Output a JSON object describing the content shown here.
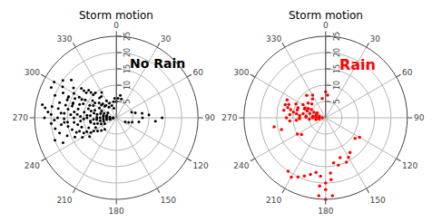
{
  "chart_data": [
    {
      "type": "polar",
      "title": "Storm motion",
      "annotations": [
        "No Rain"
      ],
      "color": "black",
      "x": [
        285,
        280,
        275,
        270,
        265,
        260,
        255,
        290,
        295,
        300,
        285,
        280,
        275,
        270,
        265,
        260,
        255,
        250,
        245,
        290,
        295,
        300,
        305,
        310,
        315,
        285,
        280,
        275,
        270,
        265,
        260,
        255,
        285,
        280,
        275,
        270,
        265,
        260,
        255,
        250,
        245,
        290,
        295,
        300,
        285,
        280,
        275,
        270,
        265,
        260,
        255,
        290,
        295,
        300,
        320,
        325,
        330,
        335,
        340,
        345,
        270,
        275,
        280,
        265,
        260,
        255,
        250,
        245,
        240,
        235,
        290,
        295,
        300,
        305,
        310,
        315,
        270,
        275,
        265,
        260,
        350,
        355,
        0,
        5,
        10,
        15,
        90,
        90,
        85,
        95,
        100,
        105,
        110,
        115,
        80,
        75,
        70,
        330,
        325,
        320,
        315,
        310,
        240,
        235,
        230,
        225,
        300,
        305,
        310,
        250,
        245,
        275,
        272,
        278,
        268,
        263,
        282,
        288,
        293,
        298,
        271,
        276,
        266,
        284,
        279,
        274,
        269,
        264,
        289,
        294,
        299,
        273,
        278,
        268,
        263,
        283,
        288,
        293,
        298,
        320,
        315,
        310,
        250,
        245,
        240,
        306,
        311,
        316,
        253,
        248,
        243
      ],
      "values": [
        8,
        10,
        12,
        9,
        11,
        8,
        7,
        7,
        9,
        6,
        14,
        15,
        16,
        13,
        15,
        12,
        11,
        9,
        7,
        12,
        14,
        11,
        8,
        6,
        5,
        5,
        6,
        8,
        5,
        6,
        5,
        4,
        18,
        20,
        17,
        18,
        16,
        15,
        14,
        12,
        10,
        16,
        18,
        15,
        3,
        4,
        3,
        3,
        4,
        3,
        2,
        4,
        5,
        3,
        5,
        4,
        6,
        5,
        4,
        3,
        22,
        21,
        23,
        20,
        19,
        18,
        16,
        14,
        12,
        10,
        20,
        22,
        19,
        16,
        13,
        11,
        1,
        2,
        1,
        2,
        5,
        6,
        5,
        6,
        7,
        6,
        8,
        14,
        10,
        12,
        7,
        5,
        4,
        3,
        8,
        6,
        5,
        9,
        8,
        10,
        12,
        14,
        8,
        7,
        6,
        5,
        22,
        20,
        18,
        20,
        18,
        9,
        11,
        13,
        10,
        8,
        7,
        9,
        11,
        8,
        6,
        4,
        7,
        16,
        18,
        14,
        16,
        13,
        14,
        16,
        13,
        20,
        22,
        19,
        17,
        12,
        14,
        16,
        12,
        8,
        10,
        12,
        13,
        11,
        9,
        9,
        7,
        6,
        6,
        5,
        4
      ],
      "xticks": [
        0,
        30,
        60,
        90,
        120,
        150,
        180,
        210,
        240,
        270,
        300,
        330
      ],
      "ylim": [
        0,
        25
      ],
      "yticks": [
        5,
        10,
        15,
        20,
        25
      ],
      "grid": true
    },
    {
      "type": "polar",
      "title": "Storm motion",
      "annotations": [
        "Rain"
      ],
      "color": "red",
      "x": [
        285,
        280,
        275,
        270,
        265,
        260,
        290,
        295,
        300,
        285,
        280,
        275,
        270,
        265,
        260,
        285,
        280,
        275,
        270,
        265,
        290,
        295,
        300,
        285,
        280,
        275,
        270,
        265,
        290,
        295,
        330,
        325,
        320,
        290,
        295,
        300,
        270,
        275,
        0,
        5,
        350,
        180,
        185,
        175,
        180,
        185,
        190,
        175,
        150,
        155,
        160,
        120,
        125,
        240,
        235,
        200,
        205,
        195,
        180,
        175,
        185,
        210,
        215,
        165,
        170,
        145,
        260,
        255,
        272,
        268,
        277,
        283,
        288,
        278,
        293,
        298,
        310,
        315
      ],
      "values": [
        5,
        7,
        6,
        4,
        5,
        3,
        6,
        7,
        5,
        2,
        3,
        3,
        2,
        3,
        2,
        9,
        10,
        8,
        8,
        9,
        9,
        10,
        8,
        12,
        13,
        11,
        12,
        11,
        12,
        13,
        8,
        7,
        9,
        3,
        4,
        3,
        1,
        2,
        8,
        7,
        6,
        20,
        21,
        19,
        22,
        18,
        17,
        17,
        14,
        15,
        13,
        12,
        11,
        10,
        9,
        19,
        20,
        18,
        25,
        24,
        24,
        21,
        20,
        15,
        14,
        13,
        16,
        14,
        6,
        8,
        4,
        11,
        13,
        9,
        7,
        6,
        7,
        6
      ],
      "xticks": [
        0,
        30,
        60,
        90,
        120,
        150,
        180,
        210,
        240,
        270,
        300,
        330
      ],
      "ylim": [
        0,
        25
      ],
      "yticks": [
        5,
        10,
        15,
        20,
        25
      ],
      "grid": true
    }
  ]
}
